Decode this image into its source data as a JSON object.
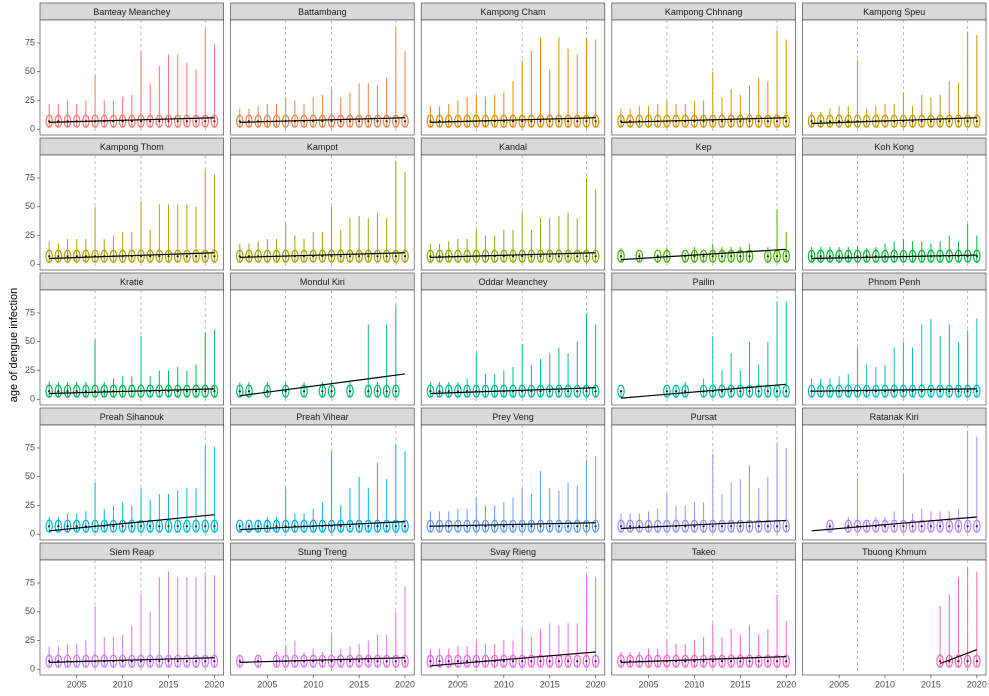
{
  "chart_data": {
    "type": "violin",
    "ylabel": "age of dengue infection",
    "x": [
      2002,
      2003,
      2004,
      2005,
      2006,
      2007,
      2008,
      2009,
      2010,
      2011,
      2012,
      2013,
      2014,
      2015,
      2016,
      2017,
      2018,
      2019,
      2020
    ],
    "xlim": [
      2001,
      2021
    ],
    "xticks": [
      2005,
      2010,
      2015,
      2020
    ],
    "ylim": [
      -5,
      95
    ],
    "yticks": [
      0,
      25,
      50,
      75
    ],
    "vlines": [
      2007,
      2012,
      2019
    ],
    "panels": [
      {
        "title": "Banteay Meanchey",
        "color": "#F8766D",
        "max": [
          22,
          22,
          25,
          22,
          25,
          48,
          25,
          25,
          28,
          30,
          68,
          40,
          55,
          65,
          65,
          58,
          52,
          87,
          74
        ],
        "trend": {
          "x": [
            2002,
            2020
          ],
          "y": [
            6,
            10
          ]
        }
      },
      {
        "title": "Battambang",
        "color": "#EE8044",
        "max": [
          18,
          18,
          20,
          22,
          22,
          28,
          25,
          22,
          28,
          30,
          35,
          28,
          32,
          40,
          40,
          38,
          45,
          88,
          68
        ],
        "trend": {
          "x": [
            2002,
            2020
          ],
          "y": [
            6,
            10
          ]
        }
      },
      {
        "title": "Kampong Cham",
        "color": "#E38900",
        "max": [
          20,
          20,
          22,
          25,
          28,
          30,
          28,
          30,
          32,
          42,
          60,
          68,
          80,
          52,
          80,
          70,
          65,
          80,
          78
        ],
        "trend": {
          "x": [
            2002,
            2020
          ],
          "y": [
            6,
            10
          ]
        }
      },
      {
        "title": "Kampong Chhnang",
        "color": "#D59100",
        "max": [
          18,
          18,
          20,
          20,
          22,
          25,
          22,
          22,
          25,
          25,
          50,
          28,
          35,
          30,
          38,
          45,
          42,
          86,
          78
        ],
        "trend": {
          "x": [
            2002,
            2020
          ],
          "y": [
            6,
            10
          ]
        }
      },
      {
        "title": "Kampong Speu",
        "color": "#C49A00",
        "max": [
          15,
          15,
          18,
          20,
          20,
          60,
          18,
          20,
          22,
          22,
          32,
          20,
          30,
          28,
          30,
          42,
          40,
          85,
          82
        ],
        "trend": {
          "x": [
            2002,
            2020
          ],
          "y": [
            5,
            10
          ]
        }
      },
      {
        "title": "Kampong Thom",
        "color": "#B2A100",
        "max": [
          20,
          18,
          22,
          22,
          22,
          50,
          22,
          25,
          28,
          28,
          55,
          30,
          52,
          52,
          52,
          52,
          50,
          82,
          78
        ],
        "trend": {
          "x": [
            2002,
            2020
          ],
          "y": [
            5,
            10
          ]
        }
      },
      {
        "title": "Kampot",
        "color": "#9DA700",
        "max": [
          18,
          18,
          20,
          22,
          22,
          35,
          25,
          22,
          28,
          28,
          50,
          30,
          40,
          42,
          40,
          45,
          40,
          90,
          80
        ],
        "trend": {
          "x": [
            2002,
            2020
          ],
          "y": [
            6,
            10
          ]
        }
      },
      {
        "title": "Kandal",
        "color": "#85AD00",
        "max": [
          18,
          18,
          20,
          22,
          22,
          30,
          25,
          25,
          30,
          30,
          45,
          30,
          40,
          40,
          42,
          45,
          40,
          75,
          65
        ],
        "trend": {
          "x": [
            2002,
            2020
          ],
          "y": [
            6,
            10
          ]
        }
      },
      {
        "title": "Kep",
        "color": "#3DB600",
        "max": [
          14,
          null,
          10,
          null,
          9,
          14,
          null,
          10,
          15,
          10,
          18,
          15,
          15,
          15,
          18,
          null,
          15,
          48,
          28
        ],
        "trend": {
          "x": [
            2002,
            2020
          ],
          "y": [
            4,
            13
          ]
        }
      },
      {
        "title": "Koh Kong",
        "color": "#00BA38",
        "max": [
          15,
          15,
          15,
          15,
          15,
          15,
          14,
          15,
          18,
          20,
          22,
          20,
          20,
          18,
          20,
          25,
          20,
          35,
          25
        ],
        "trend": {
          "x": [
            2002,
            2020
          ],
          "y": [
            5,
            8
          ]
        }
      },
      {
        "title": "Kratie",
        "color": "#00BC59",
        "max": [
          15,
          15,
          15,
          15,
          15,
          52,
          15,
          18,
          20,
          20,
          55,
          20,
          25,
          25,
          28,
          25,
          30,
          58,
          60
        ],
        "trend": {
          "x": [
            2002,
            2020
          ],
          "y": [
            5,
            9
          ]
        }
      },
      {
        "title": "Mondul Kiri",
        "color": "#00BF74",
        "max": [
          15,
          15,
          null,
          15,
          null,
          15,
          null,
          15,
          null,
          15,
          15,
          null,
          15,
          null,
          65,
          15,
          65,
          82,
          null
        ],
        "trend": {
          "x": [
            2002,
            2020
          ],
          "y": [
            3,
            22
          ]
        }
      },
      {
        "title": "Oddar Meanchey",
        "color": "#00C08D",
        "max": [
          15,
          15,
          15,
          15,
          18,
          40,
          22,
          22,
          25,
          28,
          48,
          30,
          35,
          40,
          45,
          40,
          50,
          75,
          65
        ],
        "trend": {
          "x": [
            2002,
            2020
          ],
          "y": [
            5,
            10
          ]
        }
      },
      {
        "title": "Pailin",
        "color": "#00C0A5",
        "max": [
          8,
          null,
          null,
          null,
          null,
          10,
          12,
          15,
          null,
          18,
          55,
          25,
          40,
          25,
          50,
          30,
          50,
          85,
          85
        ],
        "trend": {
          "x": [
            2002,
            2020
          ],
          "y": [
            1,
            13
          ]
        }
      },
      {
        "title": "Phnom Penh",
        "color": "#00BFBC",
        "max": [
          18,
          18,
          18,
          20,
          22,
          45,
          30,
          28,
          30,
          45,
          50,
          45,
          65,
          70,
          55,
          65,
          50,
          60,
          70
        ],
        "trend": {
          "x": [
            2002,
            2020
          ],
          "y": [
            7,
            9
          ]
        }
      },
      {
        "title": "Preah Sihanouk",
        "color": "#00BCD1",
        "max": [
          15,
          15,
          18,
          18,
          20,
          45,
          22,
          25,
          28,
          25,
          40,
          30,
          35,
          35,
          38,
          40,
          40,
          77,
          76
        ],
        "trend": {
          "x": [
            2002,
            2020
          ],
          "y": [
            3,
            17
          ]
        }
      },
      {
        "title": "Preah Vihear",
        "color": "#00AEF6",
        "max": [
          10,
          10,
          12,
          15,
          15,
          40,
          18,
          18,
          22,
          28,
          72,
          25,
          40,
          50,
          40,
          62,
          48,
          78,
          72
        ],
        "trend": {
          "x": [
            2002,
            2020
          ],
          "y": [
            4,
            11
          ]
        }
      },
      {
        "title": "Prey Veng",
        "color": "#619CFF",
        "max": [
          20,
          20,
          20,
          22,
          22,
          32,
          25,
          25,
          28,
          32,
          40,
          35,
          55,
          40,
          38,
          45,
          42,
          65,
          68
        ],
        "trend": {
          "x": [
            2002,
            2020
          ],
          "y": [
            7,
            10
          ]
        }
      },
      {
        "title": "Pursat",
        "color": "#8F91FF",
        "max": [
          18,
          18,
          18,
          20,
          22,
          35,
          25,
          25,
          28,
          28,
          70,
          35,
          45,
          48,
          60,
          40,
          50,
          80,
          75
        ],
        "trend": {
          "x": [
            2002,
            2020
          ],
          "y": [
            5,
            12
          ]
        }
      },
      {
        "title": "Ratanak Kiri",
        "color": "#B385FF",
        "max": [
          null,
          null,
          10,
          null,
          15,
          48,
          12,
          15,
          15,
          20,
          52,
          18,
          22,
          20,
          20,
          20,
          22,
          90,
          85
        ],
        "trend": {
          "x": [
            2002,
            2020
          ],
          "y": [
            3,
            15
          ]
        }
      },
      {
        "title": "Siem Reap",
        "color": "#CF78FF",
        "max": [
          20,
          20,
          22,
          22,
          25,
          55,
          28,
          28,
          30,
          38,
          65,
          50,
          80,
          85,
          80,
          80,
          80,
          82,
          82
        ],
        "trend": {
          "x": [
            2002,
            2020
          ],
          "y": [
            6,
            10
          ]
        }
      },
      {
        "title": "Stung Treng",
        "color": "#E36EF6",
        "max": [
          12,
          null,
          12,
          null,
          15,
          20,
          25,
          15,
          18,
          15,
          30,
          18,
          20,
          22,
          25,
          30,
          30,
          50,
          72
        ],
        "trend": {
          "x": [
            2002,
            2020
          ],
          "y": [
            6,
            10
          ]
        }
      },
      {
        "title": "Svay Rieng",
        "color": "#F166E8",
        "max": [
          18,
          18,
          18,
          20,
          20,
          25,
          22,
          22,
          25,
          25,
          35,
          28,
          35,
          40,
          38,
          40,
          40,
          82,
          80
        ],
        "trend": {
          "x": [
            2002,
            2020
          ],
          "y": [
            3,
            15
          ]
        }
      },
      {
        "title": "Takeo",
        "color": "#FA62D4",
        "max": [
          15,
          15,
          15,
          18,
          18,
          25,
          22,
          22,
          25,
          28,
          40,
          28,
          35,
          30,
          38,
          30,
          35,
          65,
          42
        ],
        "trend": {
          "x": [
            2002,
            2020
          ],
          "y": [
            6,
            11
          ]
        }
      },
      {
        "title": "Tbuong Khmum",
        "color": "#FF65AC",
        "max": [
          null,
          null,
          null,
          null,
          null,
          null,
          null,
          null,
          null,
          null,
          null,
          null,
          null,
          null,
          55,
          65,
          80,
          88,
          85
        ],
        "trend": {
          "x": [
            2016,
            2020
          ],
          "y": [
            5,
            17
          ]
        }
      }
    ]
  }
}
